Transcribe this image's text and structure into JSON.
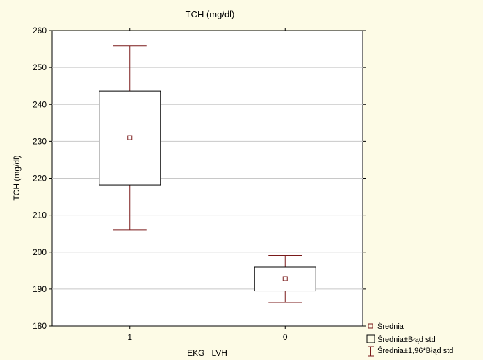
{
  "chart_data": {
    "type": "box",
    "title": "TCH (mg/dl)",
    "xlabel": "EKG   LVH",
    "ylabel": "TCH (mg/dl)",
    "categories": [
      "1",
      "0"
    ],
    "ylim": [
      180,
      260
    ],
    "yticks": [
      180,
      190,
      200,
      210,
      220,
      230,
      240,
      250,
      260
    ],
    "grid": true,
    "legend_position": "bottom-right",
    "legend": [
      "Średnia",
      "Średnia±Błąd std",
      "Średnia±1,96*Błąd std"
    ],
    "groups": [
      {
        "category": "1",
        "mean": 231,
        "se_low": 218.2,
        "se_high": 243.6,
        "ci_low": 206,
        "ci_high": 255.9
      },
      {
        "category": "0",
        "mean": 192.8,
        "se_low": 189.5,
        "se_high": 196,
        "ci_low": 186.4,
        "ci_high": 199.1
      }
    ],
    "colors": {
      "box": "#7a1a1a",
      "whisker": "#7a1a1a",
      "mean_marker": "#7a1a1a",
      "grid": "#c8c8c8",
      "background": "#fdfbe6",
      "plot_background": "#ffffff"
    }
  }
}
